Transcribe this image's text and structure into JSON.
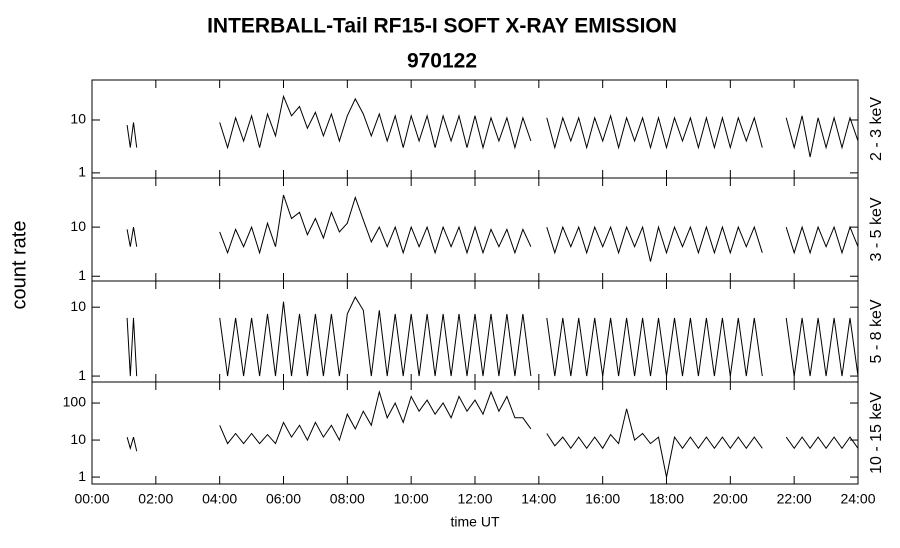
{
  "title": "INTERBALL-Tail RF15-I SOFT X-RAY EMISSION",
  "subtitle": "970122",
  "ylabel": "count rate",
  "xlabel": "time UT",
  "xlim": [
    0,
    24
  ],
  "xticks": [
    {
      "value": 0,
      "label": "00:00"
    },
    {
      "value": 2,
      "label": "02:00"
    },
    {
      "value": 4,
      "label": "04:00"
    },
    {
      "value": 6,
      "label": "06:00"
    },
    {
      "value": 8,
      "label": "08:00"
    },
    {
      "value": 10,
      "label": "10:00"
    },
    {
      "value": 12,
      "label": "12:00"
    },
    {
      "value": 14,
      "label": "14:00"
    },
    {
      "value": 16,
      "label": "16:00"
    },
    {
      "value": 18,
      "label": "18:00"
    },
    {
      "value": 20,
      "label": "20:00"
    },
    {
      "value": 22,
      "label": "22:00"
    },
    {
      "value": 24,
      "label": "24:00"
    }
  ],
  "x": [
    1.1,
    1.2,
    1.3,
    1.4,
    2.5,
    4,
    4.25,
    4.5,
    4.75,
    5,
    5.25,
    5.5,
    5.75,
    6,
    6.25,
    6.5,
    6.75,
    7,
    7.25,
    7.5,
    7.75,
    8,
    8.25,
    8.5,
    8.75,
    9,
    9.25,
    9.5,
    9.75,
    10,
    10.25,
    10.5,
    10.75,
    11,
    11.25,
    11.5,
    11.75,
    12,
    12.25,
    12.5,
    12.75,
    13,
    13.25,
    13.5,
    13.75,
    14,
    14.25,
    14.5,
    14.75,
    15,
    15.25,
    15.5,
    15.75,
    16,
    16.25,
    16.5,
    16.75,
    17,
    17.25,
    17.5,
    17.75,
    18,
    18.25,
    18.5,
    18.75,
    19,
    19.25,
    19.5,
    19.75,
    20,
    20.25,
    20.5,
    20.75,
    21,
    21.25,
    21.5,
    21.75,
    22,
    22.25,
    22.5,
    22.75,
    23,
    23.25,
    23.5,
    23.75,
    24
  ],
  "chart_data": [
    {
      "type": "line",
      "label": "2 - 3 keV",
      "log_y": true,
      "color": "#000000",
      "ylim": [
        0.8,
        57
      ],
      "yticks": [
        1,
        10
      ],
      "values": [
        8,
        3,
        9,
        3,
        null,
        9,
        3,
        11,
        4,
        12,
        3,
        13,
        5,
        28,
        12,
        18,
        7,
        14,
        5,
        13,
        4,
        12,
        25,
        13,
        5,
        13,
        4,
        12,
        3,
        12,
        4,
        12,
        3,
        12,
        4,
        12,
        3,
        12,
        3,
        11,
        4,
        11,
        3,
        11,
        4,
        null,
        11,
        3,
        11,
        4,
        11,
        3,
        11,
        4,
        12,
        3,
        11,
        4,
        11,
        3,
        11,
        3,
        11,
        4,
        11,
        3,
        11,
        3,
        11,
        3,
        11,
        4,
        11,
        3,
        null,
        null,
        11,
        3,
        12,
        2,
        11,
        3,
        11,
        3,
        11,
        4
      ]
    },
    {
      "type": "line",
      "label": "3 - 5 keV",
      "log_y": true,
      "color": "#000000",
      "ylim": [
        0.8,
        100
      ],
      "yticks": [
        1,
        10
      ],
      "values": [
        9,
        4,
        10,
        4,
        null,
        8,
        3,
        9,
        4,
        10,
        3,
        12,
        4,
        45,
        15,
        20,
        7,
        15,
        6,
        20,
        8,
        12,
        40,
        14,
        5,
        10,
        4,
        10,
        3,
        10,
        4,
        10,
        3,
        10,
        4,
        10,
        3,
        10,
        3,
        9,
        4,
        9,
        3,
        9,
        4,
        null,
        10,
        3,
        10,
        4,
        10,
        3,
        10,
        4,
        10,
        3,
        10,
        4,
        10,
        2,
        10,
        3,
        10,
        4,
        10,
        3,
        10,
        3,
        10,
        3,
        10,
        4,
        10,
        3,
        null,
        null,
        10,
        3,
        10,
        3,
        10,
        4,
        10,
        3,
        10,
        4
      ]
    },
    {
      "type": "line",
      "label": "5 - 8 keV",
      "log_y": true,
      "color": "#000000",
      "ylim": [
        0.82,
        24
      ],
      "yticks": [
        1,
        10
      ],
      "values": [
        7,
        1,
        7,
        1,
        null,
        7,
        1,
        7,
        1,
        7,
        1,
        8,
        1,
        12,
        1,
        8,
        1,
        8,
        1,
        8,
        1,
        8,
        14,
        9,
        1,
        9,
        1,
        8,
        1,
        8,
        1,
        8,
        1,
        8,
        1,
        8,
        1,
        8,
        1,
        8,
        1,
        8,
        1,
        8,
        1,
        null,
        7,
        1,
        7,
        1,
        7,
        1,
        7,
        1,
        7,
        1,
        7,
        1,
        7,
        1,
        7,
        1,
        7,
        1,
        7,
        1,
        7,
        1,
        7,
        1,
        7,
        1,
        7,
        1,
        null,
        null,
        7,
        1,
        7,
        1,
        7,
        1,
        7,
        1,
        7,
        1
      ]
    },
    {
      "type": "line",
      "label": "10 - 15 keV",
      "log_y": true,
      "color": "#000000",
      "ylim": [
        0.65,
        370
      ],
      "yticks": [
        1,
        10,
        100
      ],
      "values": [
        12,
        6,
        12,
        5,
        null,
        25,
        8,
        15,
        8,
        15,
        8,
        14,
        8,
        30,
        12,
        25,
        10,
        30,
        12,
        25,
        10,
        50,
        20,
        60,
        25,
        200,
        40,
        100,
        30,
        150,
        60,
        120,
        50,
        100,
        40,
        150,
        60,
        120,
        50,
        200,
        60,
        150,
        40,
        40,
        20,
        null,
        15,
        7,
        12,
        6,
        12,
        6,
        12,
        6,
        14,
        8,
        70,
        10,
        15,
        8,
        12,
        1,
        12,
        6,
        12,
        6,
        12,
        6,
        12,
        6,
        12,
        6,
        12,
        6,
        null,
        null,
        12,
        6,
        12,
        6,
        12,
        6,
        12,
        6,
        12,
        6
      ]
    }
  ]
}
